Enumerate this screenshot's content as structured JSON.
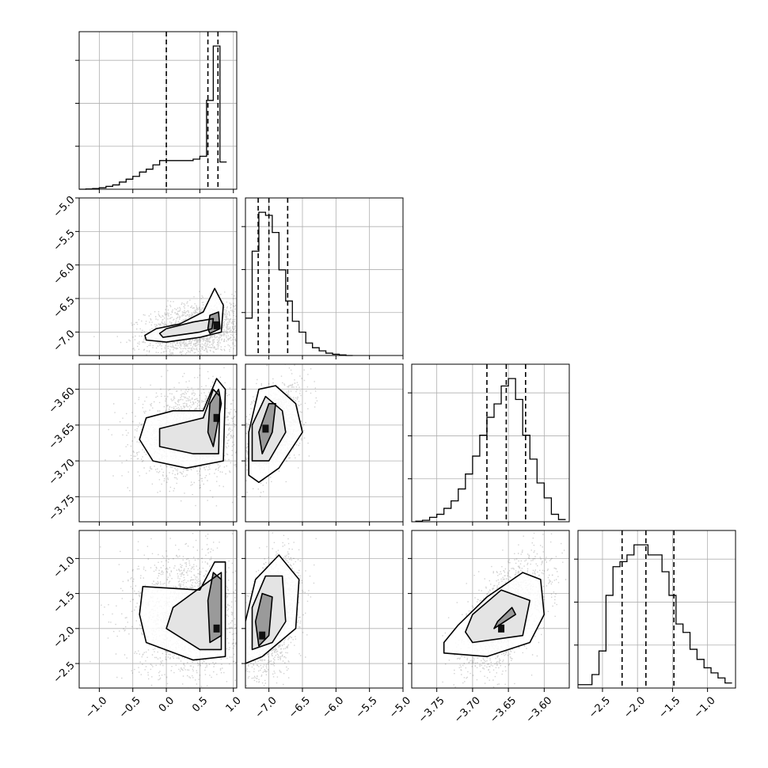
{
  "chart_data": {
    "type": "corner",
    "parameters": 4,
    "grid": true,
    "axes": [
      {
        "range": [
          -1.3,
          1.05
        ],
        "ticks": [
          -1.0,
          -0.5,
          0.0,
          0.5,
          1.0
        ],
        "tick_labels": [
          "−1.0",
          "−0.5",
          "0.0",
          "0.5",
          "1.0"
        ]
      },
      {
        "range": [
          -7.35,
          -5.0
        ],
        "ticks": [
          -7.0,
          -6.5,
          -6.0,
          -5.5,
          -5.0
        ],
        "tick_labels": [
          "−7.0",
          "−6.5",
          "−6.0",
          "−5.5",
          "−5.0"
        ]
      },
      {
        "range": [
          -3.785,
          -3.565
        ],
        "ticks": [
          -3.75,
          -3.7,
          -3.65,
          -3.6
        ],
        "tick_labels": [
          "−3.75",
          "−3.70",
          "−3.65",
          "−3.60"
        ]
      },
      {
        "range": [
          -2.85,
          -0.6
        ],
        "ticks": [
          -2.5,
          -2.0,
          -1.5,
          -1.0
        ],
        "tick_labels": [
          "−2.5",
          "−2.0",
          "−1.5",
          "−1.0"
        ]
      }
    ],
    "row_axes": [
      null,
      {
        "range": [
          -7.35,
          -5.0
        ],
        "ticks": [
          -7.0,
          -6.5,
          -6.0,
          -5.5,
          -5.0
        ],
        "tick_labels": [
          "−7.0",
          "−6.5",
          "−6.0",
          "−5.5",
          "−5.0"
        ]
      },
      {
        "range": [
          -3.785,
          -3.565
        ],
        "ticks": [
          -3.75,
          -3.7,
          -3.65,
          -3.6
        ],
        "tick_labels": [
          "−3.75",
          "−3.70",
          "−3.65",
          "−3.60"
        ]
      },
      {
        "range": [
          -2.85,
          -0.6
        ],
        "ticks": [
          -2.5,
          -2.0,
          -1.5,
          -1.0
        ],
        "tick_labels": [
          "−2.5",
          "−2.0",
          "−1.5",
          "−1.0"
        ]
      }
    ],
    "histograms": [
      {
        "bin_edges": [
          -1.3,
          -1.2,
          -1.1,
          -1.0,
          -0.9,
          -0.8,
          -0.7,
          -0.6,
          -0.5,
          -0.4,
          -0.3,
          -0.2,
          -0.1,
          0.0,
          0.1,
          0.2,
          0.3,
          0.4,
          0.5,
          0.6,
          0.7,
          0.8,
          0.9
        ],
        "counts": [
          0,
          0.002,
          0.005,
          0.01,
          0.02,
          0.03,
          0.05,
          0.07,
          0.09,
          0.12,
          0.14,
          0.17,
          0.2,
          0.2,
          0.2,
          0.2,
          0.2,
          0.21,
          0.23,
          0.62,
          1.0,
          0.19
        ],
        "quantiles": [
          0.0,
          0.62,
          0.77
        ]
      },
      {
        "bin_edges": [
          -7.35,
          -7.25,
          -7.15,
          -7.05,
          -6.95,
          -6.85,
          -6.75,
          -6.65,
          -6.55,
          -6.45,
          -6.35,
          -6.25,
          -6.15,
          -6.05,
          -5.95,
          -5.85,
          -5.75
        ],
        "counts": [
          0.24,
          0.67,
          0.92,
          0.9,
          0.79,
          0.55,
          0.35,
          0.22,
          0.15,
          0.08,
          0.05,
          0.03,
          0.015,
          0.008,
          0.004,
          0
        ],
        "quantiles": [
          -7.16,
          -7.0,
          -6.72
        ]
      },
      {
        "bin_edges": [
          -3.78,
          -3.77,
          -3.76,
          -3.75,
          -3.74,
          -3.73,
          -3.72,
          -3.71,
          -3.7,
          -3.69,
          -3.68,
          -3.67,
          -3.66,
          -3.65,
          -3.64,
          -3.63,
          -3.62,
          -3.61,
          -3.6,
          -3.59,
          -3.58,
          -3.57
        ],
        "counts": [
          0.004,
          0.01,
          0.03,
          0.05,
          0.09,
          0.14,
          0.22,
          0.32,
          0.44,
          0.58,
          0.7,
          0.79,
          0.91,
          0.96,
          0.82,
          0.58,
          0.42,
          0.26,
          0.16,
          0.05,
          0.015
        ],
        "quantiles": [
          -3.68,
          -3.653,
          -3.626
        ]
      },
      {
        "bin_edges": [
          -2.85,
          -2.75,
          -2.65,
          -2.55,
          -2.45,
          -2.35,
          -2.25,
          -2.15,
          -2.05,
          -1.95,
          -1.85,
          -1.75,
          -1.65,
          -1.55,
          -1.45,
          -1.35,
          -1.25,
          -1.15,
          -1.05,
          -0.95,
          -0.85,
          -0.75,
          -0.65
        ],
        "counts": [
          0.02,
          0.02,
          0.08,
          0.22,
          0.55,
          0.72,
          0.75,
          0.79,
          0.85,
          0.85,
          0.79,
          0.79,
          0.69,
          0.55,
          0.38,
          0.33,
          0.23,
          0.17,
          0.12,
          0.09,
          0.06,
          0.03
        ],
        "quantiles": [
          -2.22,
          -1.88,
          -1.48
        ]
      }
    ],
    "pairs": [
      {
        "col": 0,
        "row": 1,
        "mean": [
          0.45,
          -6.95
        ],
        "std": [
          0.38,
          0.2
        ],
        "corr": 0.25,
        "peak": [
          0.75,
          -6.9
        ],
        "contours": [
          [
            [
              0.65,
              -7.02
            ],
            [
              0.8,
              -6.95
            ],
            [
              0.78,
              -6.7
            ],
            [
              0.65,
              -6.75
            ],
            [
              0.62,
              -6.95
            ]
          ],
          [
            [
              -0.3,
              -7.12
            ],
            [
              0.0,
              -7.15
            ],
            [
              0.5,
              -7.08
            ],
            [
              0.82,
              -7.0
            ],
            [
              0.85,
              -6.6
            ],
            [
              0.72,
              -6.35
            ],
            [
              0.55,
              -6.7
            ],
            [
              0.2,
              -6.88
            ],
            [
              -0.15,
              -6.95
            ],
            [
              -0.32,
              -7.05
            ]
          ],
          [
            [
              -0.05,
              -7.08
            ],
            [
              0.5,
              -7.0
            ],
            [
              0.68,
              -6.95
            ],
            [
              0.7,
              -6.8
            ],
            [
              0.4,
              -6.85
            ],
            [
              0.0,
              -6.95
            ],
            [
              -0.1,
              -7.02
            ]
          ]
        ]
      },
      {
        "col": 0,
        "row": 2,
        "mean": [
          0.35,
          -3.66
        ],
        "std": [
          0.38,
          0.03
        ],
        "corr": 0.1,
        "peak": [
          0.75,
          -3.64
        ],
        "contours": [
          [
            [
              0.7,
              -3.68
            ],
            [
              0.82,
              -3.62
            ],
            [
              0.78,
              -3.6
            ],
            [
              0.65,
              -3.62
            ],
            [
              0.62,
              -3.66
            ]
          ],
          [
            [
              -0.4,
              -3.67
            ],
            [
              -0.2,
              -3.7
            ],
            [
              0.3,
              -3.71
            ],
            [
              0.85,
              -3.7
            ],
            [
              0.88,
              -3.6
            ],
            [
              0.75,
              -3.585
            ],
            [
              0.55,
              -3.63
            ],
            [
              0.1,
              -3.63
            ],
            [
              -0.3,
              -3.64
            ]
          ],
          [
            [
              -0.1,
              -3.68
            ],
            [
              0.4,
              -3.69
            ],
            [
              0.78,
              -3.69
            ],
            [
              0.8,
              -3.61
            ],
            [
              0.7,
              -3.6
            ],
            [
              0.55,
              -3.64
            ],
            [
              -0.1,
              -3.655
            ]
          ]
        ]
      },
      {
        "col": 0,
        "row": 3,
        "mean": [
          0.3,
          -1.8
        ],
        "std": [
          0.4,
          0.45
        ],
        "corr": 0.0,
        "peak": [
          0.75,
          -2.0
        ],
        "contours": [
          [
            [
              0.65,
              -2.2
            ],
            [
              0.82,
              -2.1
            ],
            [
              0.82,
              -1.3
            ],
            [
              0.7,
              -1.2
            ],
            [
              0.62,
              -1.6
            ]
          ],
          [
            [
              -0.3,
              -2.2
            ],
            [
              0.4,
              -2.45
            ],
            [
              0.88,
              -2.4
            ],
            [
              0.88,
              -1.05
            ],
            [
              0.72,
              -1.05
            ],
            [
              0.5,
              -1.45
            ],
            [
              -0.35,
              -1.4
            ],
            [
              -0.4,
              -1.8
            ]
          ],
          [
            [
              0.0,
              -2.0
            ],
            [
              0.5,
              -2.3
            ],
            [
              0.82,
              -2.3
            ],
            [
              0.82,
              -1.2
            ],
            [
              0.6,
              -1.35
            ],
            [
              0.1,
              -1.7
            ]
          ]
        ]
      },
      {
        "col": 1,
        "row": 2,
        "mean": [
          -6.95,
          -3.655
        ],
        "std": [
          0.2,
          0.028
        ],
        "corr": 0.45,
        "peak": [
          -7.05,
          -3.655
        ],
        "contours": [
          [
            [
              -7.1,
              -3.69
            ],
            [
              -6.95,
              -3.66
            ],
            [
              -6.9,
              -3.62
            ],
            [
              -7.0,
              -3.62
            ],
            [
              -7.15,
              -3.66
            ]
          ],
          [
            [
              -7.3,
              -3.72
            ],
            [
              -7.15,
              -3.73
            ],
            [
              -6.85,
              -3.71
            ],
            [
              -6.5,
              -3.66
            ],
            [
              -6.6,
              -3.62
            ],
            [
              -6.9,
              -3.595
            ],
            [
              -7.15,
              -3.6
            ],
            [
              -7.3,
              -3.66
            ]
          ],
          [
            [
              -7.25,
              -3.7
            ],
            [
              -7.0,
              -3.7
            ],
            [
              -6.75,
              -3.66
            ],
            [
              -6.8,
              -3.63
            ],
            [
              -7.05,
              -3.61
            ],
            [
              -7.25,
              -3.65
            ]
          ]
        ]
      },
      {
        "col": 1,
        "row": 3,
        "mean": [
          -6.95,
          -1.8
        ],
        "std": [
          0.2,
          0.4
        ],
        "corr": 0.35,
        "peak": [
          -7.1,
          -2.1
        ],
        "contours": [
          [
            [
              -7.15,
              -2.25
            ],
            [
              -7.0,
              -2.1
            ],
            [
              -6.95,
              -1.55
            ],
            [
              -7.1,
              -1.5
            ],
            [
              -7.2,
              -1.9
            ]
          ],
          [
            [
              -7.35,
              -2.5
            ],
            [
              -7.1,
              -2.4
            ],
            [
              -6.6,
              -2.0
            ],
            [
              -6.55,
              -1.3
            ],
            [
              -6.85,
              -0.95
            ],
            [
              -7.2,
              -1.3
            ],
            [
              -7.35,
              -1.9
            ]
          ],
          [
            [
              -7.25,
              -2.3
            ],
            [
              -6.95,
              -2.2
            ],
            [
              -6.75,
              -1.9
            ],
            [
              -6.8,
              -1.25
            ],
            [
              -7.05,
              -1.25
            ],
            [
              -7.25,
              -1.7
            ]
          ]
        ]
      },
      {
        "col": 2,
        "row": 3,
        "mean": [
          -3.655,
          -1.8
        ],
        "std": [
          0.028,
          0.4
        ],
        "corr": 0.6,
        "peak": [
          -3.66,
          -2.0
        ],
        "contours": [
          [
            [
              -3.67,
              -2.0
            ],
            [
              -3.64,
              -1.8
            ],
            [
              -3.645,
              -1.7
            ],
            [
              -3.665,
              -1.9
            ]
          ],
          [
            [
              -3.74,
              -2.35
            ],
            [
              -3.68,
              -2.4
            ],
            [
              -3.62,
              -2.2
            ],
            [
              -3.6,
              -1.8
            ],
            [
              -3.605,
              -1.3
            ],
            [
              -3.63,
              -1.2
            ],
            [
              -3.68,
              -1.55
            ],
            [
              -3.72,
              -1.95
            ],
            [
              -3.74,
              -2.2
            ]
          ],
          [
            [
              -3.7,
              -2.2
            ],
            [
              -3.63,
              -2.1
            ],
            [
              -3.62,
              -1.6
            ],
            [
              -3.66,
              -1.45
            ],
            [
              -3.7,
              -1.8
            ],
            [
              -3.71,
              -2.05
            ]
          ]
        ]
      }
    ]
  }
}
